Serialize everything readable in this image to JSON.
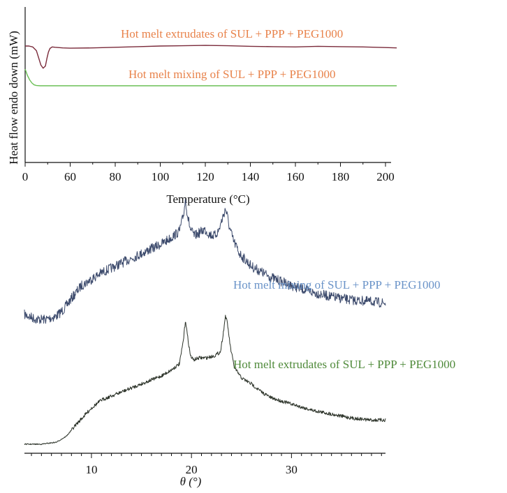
{
  "chart_data": [
    {
      "type": "line",
      "xlabel": "Temperature (°C)",
      "ylabel": "Heat flow endo down (mW)",
      "xlim": [
        0,
        205
      ],
      "x_ticks": [
        "0",
        "60",
        "80",
        "100",
        "120",
        "140",
        "160",
        "180",
        "200"
      ],
      "y_ticks": [],
      "grid": false,
      "series": [
        {
          "name": "Hot melt extrudates of SUL + PPP + PEG1000",
          "color": "#7a2a3a",
          "label_color": "#e8824a",
          "x": [
            0,
            5,
            10,
            15,
            18,
            21,
            24,
            27,
            29,
            31,
            33,
            36,
            40,
            50,
            60,
            70,
            80,
            90,
            100,
            110,
            120,
            130,
            140,
            150,
            160,
            170,
            180,
            190,
            200,
            205
          ],
          "y": [
            0.0,
            0.0,
            -0.3,
            -1.5,
            -3.8,
            -6.2,
            -7.2,
            -6.5,
            -4.0,
            -2.0,
            -0.8,
            -0.3,
            -0.4,
            -0.6,
            -0.7,
            -0.6,
            -0.4,
            -0.2,
            0.0,
            0.1,
            0.2,
            0.1,
            -0.1,
            -0.2,
            -0.3,
            -0.1,
            -0.2,
            -0.3,
            -0.5,
            -0.6
          ]
        },
        {
          "name": "Hot melt mixing of SUL + PPP + PEG1000",
          "color": "#6abf55",
          "label_color": "#e8824a",
          "x": [
            0,
            3,
            6,
            9,
            12,
            15,
            20,
            30,
            60,
            100,
            150,
            205
          ],
          "y": [
            -7.5,
            -9.5,
            -11.0,
            -12.0,
            -12.6,
            -12.8,
            -12.9,
            -12.9,
            -12.9,
            -12.9,
            -12.9,
            -12.9
          ]
        }
      ],
      "ylim": [
        -40,
        4
      ]
    },
    {
      "type": "line",
      "xlabel": "θ (°)",
      "ylabel": "",
      "xlim": [
        3.3,
        39.4
      ],
      "x_ticks": [
        "10",
        "20",
        "30"
      ],
      "x_tick_values": [
        10,
        20,
        30
      ],
      "y_ticks": [],
      "grid": false,
      "series": [
        {
          "name": "Hot melt mixing of SUL + PPP + PEG1000",
          "color": "#3c4a6c",
          "label_color": "#6a93c8",
          "x": [
            3.3,
            4.5,
            5.5,
            6.5,
            7.2,
            8,
            9,
            10,
            11,
            12,
            13,
            14,
            15,
            16,
            17,
            18,
            18.8,
            19.2,
            19.4,
            19.6,
            19.9,
            20.3,
            20.8,
            21.3,
            21.8,
            22.3,
            22.7,
            23.1,
            23.4,
            23.6,
            23.8,
            24.2,
            24.8,
            26,
            28,
            30,
            32,
            34,
            36,
            38,
            39.4
          ],
          "y": [
            0.3,
            0.27,
            0.27,
            0.29,
            0.33,
            0.4,
            0.48,
            0.52,
            0.56,
            0.59,
            0.62,
            0.65,
            0.68,
            0.71,
            0.74,
            0.78,
            0.82,
            0.92,
            1.02,
            0.92,
            0.83,
            0.79,
            0.81,
            0.83,
            0.8,
            0.79,
            0.82,
            0.9,
            0.96,
            0.91,
            0.84,
            0.76,
            0.68,
            0.6,
            0.53,
            0.48,
            0.44,
            0.41,
            0.39,
            0.38,
            0.37
          ]
        },
        {
          "name": "Hot melt extrudates of SUL + PPP + PEG1000",
          "color": "#2b3228",
          "label_color": "#4f8a3a",
          "x": [
            3.3,
            5,
            6.5,
            7.5,
            8.5,
            10,
            11,
            12,
            13,
            14,
            15,
            16,
            17,
            18,
            18.8,
            19.2,
            19.4,
            19.6,
            19.9,
            20.2,
            20.8,
            21.5,
            22.3,
            22.9,
            23.2,
            23.4,
            23.6,
            23.9,
            24.3,
            25,
            26,
            27,
            28,
            30,
            32,
            34,
            36,
            38,
            39.4
          ],
          "y": [
            0.0,
            0.0,
            0.01,
            0.04,
            0.1,
            0.18,
            0.22,
            0.24,
            0.26,
            0.28,
            0.3,
            0.32,
            0.34,
            0.37,
            0.4,
            0.52,
            0.62,
            0.54,
            0.44,
            0.42,
            0.43,
            0.43,
            0.44,
            0.46,
            0.56,
            0.64,
            0.6,
            0.48,
            0.38,
            0.33,
            0.3,
            0.26,
            0.23,
            0.2,
            0.17,
            0.15,
            0.13,
            0.12,
            0.12
          ]
        }
      ],
      "ylim": [
        -0.05,
        1.1
      ]
    }
  ]
}
